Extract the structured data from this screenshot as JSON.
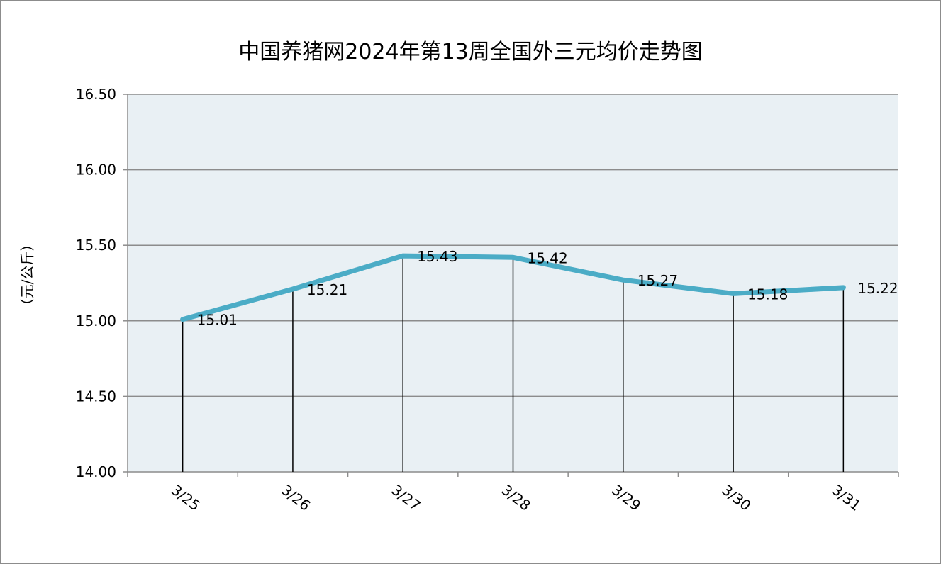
{
  "chart_data": {
    "type": "line",
    "title": "中国养猪网2024年第13周全国外三元均价走势图",
    "ylabel": "（元/公斤）",
    "xlabel": "",
    "categories": [
      "3/25",
      "3/26",
      "3/27",
      "3/28",
      "3/29",
      "3/30",
      "3/31"
    ],
    "values": [
      15.01,
      15.21,
      15.43,
      15.42,
      15.27,
      15.18,
      15.22
    ],
    "data_labels": [
      "15.01",
      "15.21",
      "15.43",
      "15.42",
      "15.27",
      "15.18",
      "15.22"
    ],
    "ylim": [
      14.0,
      16.5
    ],
    "yticks": [
      14.0,
      14.5,
      15.0,
      15.5,
      16.0,
      16.5
    ],
    "ytick_labels": [
      "14.00",
      "14.50",
      "15.00",
      "15.50",
      "16.00",
      "16.50"
    ],
    "grid": true,
    "drop_lines": true,
    "line_color": "#4bacc6",
    "plot_background": "#e9f0f4",
    "gridline_color": "#8c8c8c"
  }
}
